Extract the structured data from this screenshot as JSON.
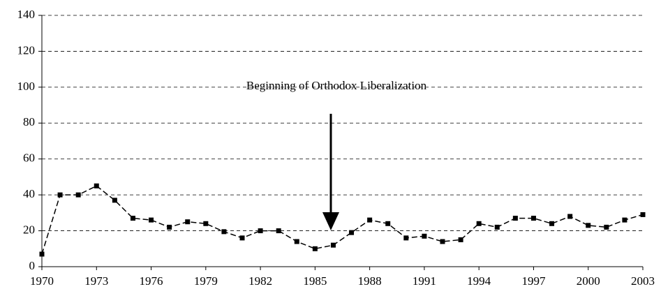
{
  "chart_data": {
    "type": "line",
    "x": [
      1970,
      1971,
      1972,
      1973,
      1974,
      1975,
      1976,
      1977,
      1978,
      1979,
      1980,
      1981,
      1982,
      1983,
      1984,
      1985,
      1986,
      1987,
      1988,
      1989,
      1990,
      1991,
      1992,
      1993,
      1994,
      1995,
      1996,
      1997,
      1998,
      1999,
      2000,
      2001,
      2002,
      2003
    ],
    "values": [
      7,
      40,
      40,
      45,
      37,
      27,
      26,
      22,
      25,
      24,
      19.5,
      16,
      20,
      20,
      14,
      10,
      12,
      19,
      26,
      24,
      16,
      17,
      14,
      15,
      24,
      22,
      27,
      27,
      24,
      28,
      23,
      22,
      26,
      29
    ],
    "color": "#000000",
    "xlim": [
      1970,
      2003
    ],
    "xticks": [
      1970,
      1973,
      1976,
      1979,
      1982,
      1985,
      1988,
      1991,
      1994,
      1997,
      2000,
      2003
    ],
    "ylim": [
      0,
      140
    ],
    "yticks": [
      0,
      20,
      40,
      60,
      80,
      100,
      120,
      140
    ],
    "grid": true,
    "annotation": "Beginning of Orthodox Liberalization"
  }
}
